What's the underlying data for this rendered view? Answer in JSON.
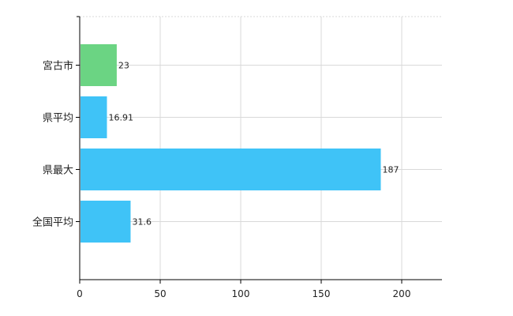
{
  "chart_data": {
    "type": "bar",
    "orientation": "horizontal",
    "categories": [
      "宮古市",
      "県平均",
      "県最大",
      "全国平均"
    ],
    "values": [
      23,
      16.91,
      187,
      31.6
    ],
    "data_labels": [
      "23",
      "16.91",
      "187",
      "31.6"
    ],
    "colors": [
      "#6bd483",
      "#3fc3f7",
      "#3fc3f7",
      "#3fc3f7"
    ],
    "xlim": [
      0,
      225
    ],
    "x_ticks": [
      0,
      50,
      100,
      150,
      200
    ],
    "grid": true,
    "grid_color": "#d9d9d9",
    "axis_color": "#000000"
  }
}
